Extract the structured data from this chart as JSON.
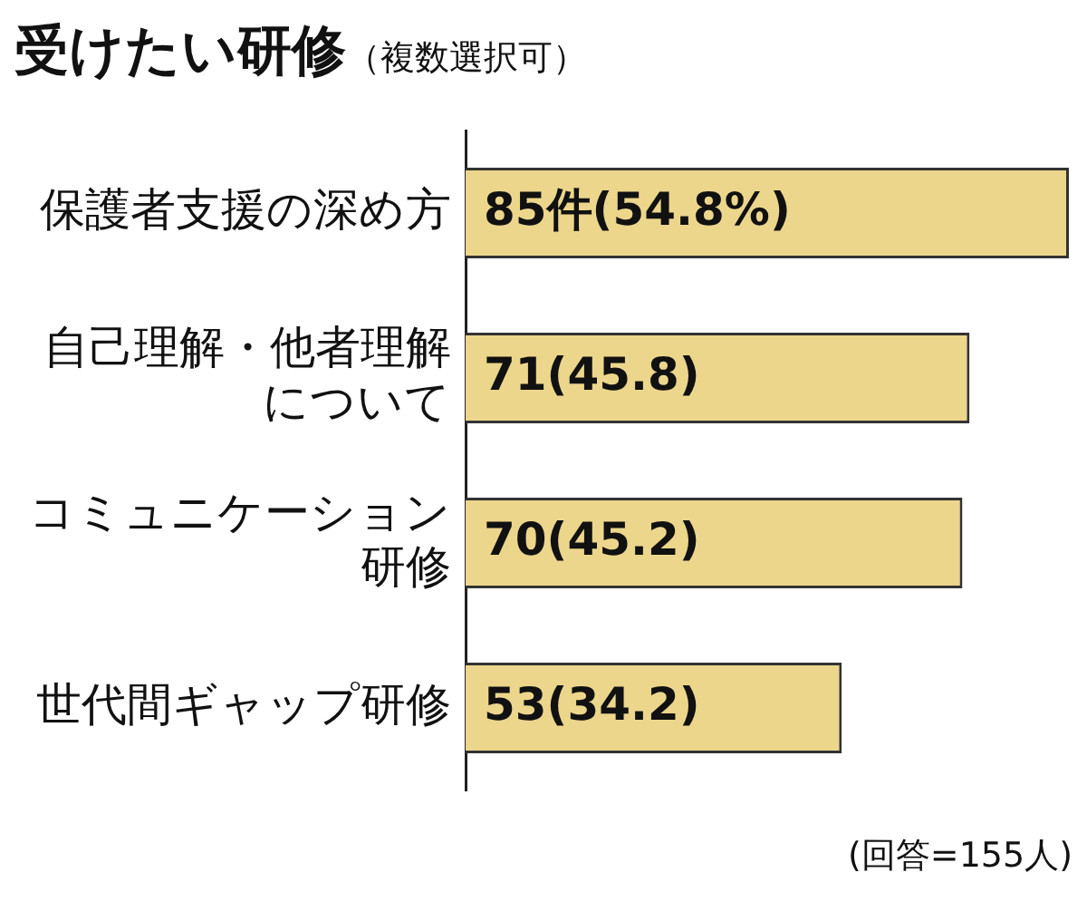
{
  "chart_data": {
    "type": "bar",
    "orientation": "horizontal",
    "title": "受けたい研修",
    "subtitle": "（複数選択可）",
    "categories": [
      "保護者支援の深め方",
      "自己理解・他者理解について",
      "コミュニケーション研修",
      "世代間ギャップ研修"
    ],
    "values": [
      85,
      71,
      70,
      53
    ],
    "color": "#ecd68c",
    "value_labels": [
      "85件(54.8%)",
      "71(45.8)",
      "70(45.2)",
      "53(34.2)"
    ],
    "annotations": [
      "(回答=155人)"
    ],
    "legend": false
  }
}
